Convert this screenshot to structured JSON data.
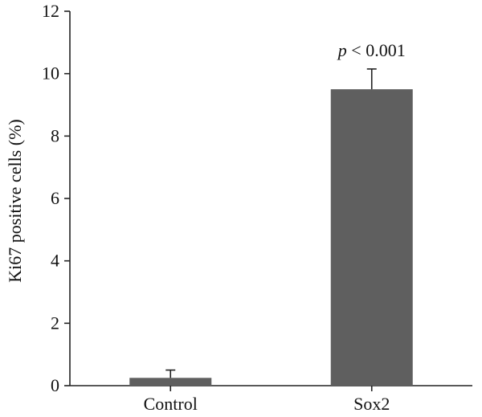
{
  "chart_data": {
    "type": "bar",
    "categories": [
      "Control",
      "Sox2"
    ],
    "values": [
      0.25,
      9.5
    ],
    "errors": [
      0.25,
      0.65
    ],
    "ylabel": "Ki67 positive cells (%)",
    "ylim": [
      0,
      12
    ],
    "yticks": [
      0,
      2,
      4,
      6,
      8,
      10,
      12
    ],
    "annotation": {
      "prefix": "p",
      "text": " < 0.001",
      "category": "Sox2"
    },
    "bar_color": "#5f5f5f",
    "grid": false
  }
}
